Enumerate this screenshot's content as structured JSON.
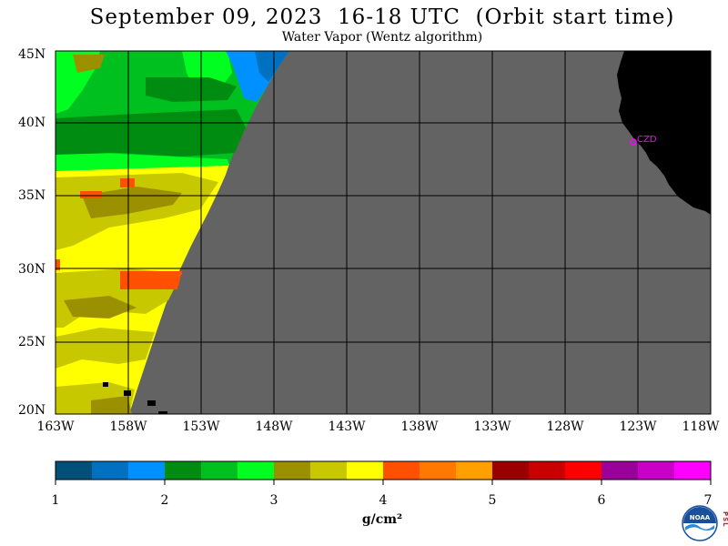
{
  "title": "September 09, 2023  16-18 UTC  (Orbit start time)",
  "subtitle": "Water Vapor (Wentz algorithm)",
  "lat_labels": [
    "45N",
    "40N",
    "35N",
    "30N",
    "25N",
    "20N"
  ],
  "lon_labels": [
    "163W",
    "158W",
    "153W",
    "148W",
    "143W",
    "138W",
    "133W",
    "128W",
    "123W",
    "118W"
  ],
  "station_label": "CZD",
  "colorbar": {
    "colors": [
      "#00507a",
      "#0070c0",
      "#0090ff",
      "#008c10",
      "#00c020",
      "#00ff20",
      "#9a9000",
      "#c8c800",
      "#ffff00",
      "#ff5000",
      "#ff7800",
      "#ffa000",
      "#9a0000",
      "#c80000",
      "#ff0000",
      "#9a009a",
      "#c800c8",
      "#ff00ff"
    ],
    "tick_labels": [
      "1",
      "2",
      "3",
      "4",
      "5",
      "6",
      "7"
    ],
    "units": "g/cm²"
  },
  "logo_text": "NOAA",
  "logo_side_text": "PSL"
}
